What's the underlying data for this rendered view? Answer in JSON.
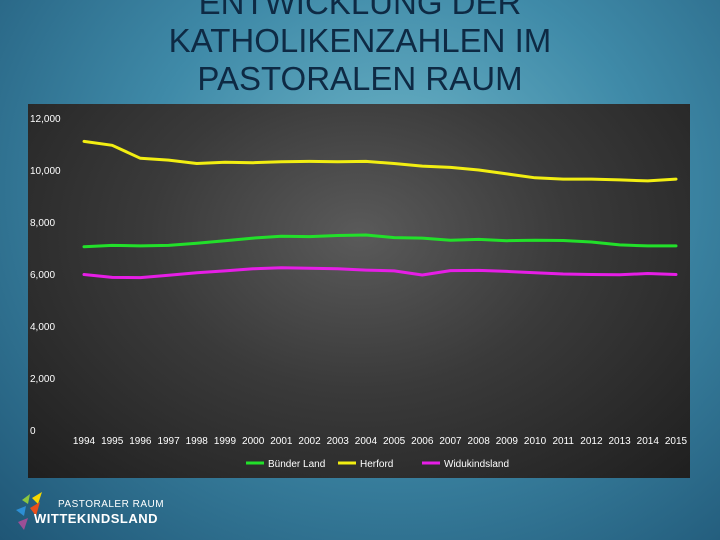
{
  "slide": {
    "title": "ENTWICKLUNG DER KATHOLIKENZAHLEN IM PASTORALEN RAUM WITTEKINDSLAND"
  },
  "logo": {
    "line1": "PASTORALER RAUM",
    "line2": "WITTEKINDSLAND"
  },
  "colors": {
    "background": "#3f8aa8",
    "title": "#0e2a44",
    "panel": "#3a3a3a",
    "text": "#ffffff"
  },
  "chart_data": {
    "type": "line",
    "title": "",
    "xlabel": "",
    "ylabel": "",
    "ylim": [
      0,
      12000
    ],
    "yticks": [
      0,
      2000,
      4000,
      6000,
      8000,
      10000,
      12000
    ],
    "ytick_labels": [
      "0",
      "2,000",
      "4,000",
      "6,000",
      "8,000",
      "10,000",
      "12,000"
    ],
    "grid": false,
    "legend_position": "bottom",
    "categories": [
      "1994",
      "1995",
      "1996",
      "1997",
      "1998",
      "1999",
      "2000",
      "2001",
      "2002",
      "2003",
      "2004",
      "2005",
      "2006",
      "2007",
      "2008",
      "2009",
      "2010",
      "2011",
      "2012",
      "2013",
      "2014",
      "2015"
    ],
    "series": [
      {
        "name": "Bünder Land",
        "color": "#22e02a",
        "values": [
          7050,
          7100,
          7080,
          7100,
          7180,
          7280,
          7380,
          7450,
          7440,
          7480,
          7500,
          7400,
          7380,
          7300,
          7330,
          7280,
          7300,
          7290,
          7230,
          7120,
          7080,
          7080
        ]
      },
      {
        "name": "Herford",
        "color": "#f2ee12",
        "values": [
          11100,
          10950,
          10450,
          10380,
          10250,
          10300,
          10280,
          10320,
          10330,
          10320,
          10330,
          10250,
          10150,
          10100,
          10000,
          9850,
          9700,
          9650,
          9650,
          9620,
          9580,
          9650
        ]
      },
      {
        "name": "Widukindsland",
        "color": "#e61ee6",
        "values": [
          5980,
          5870,
          5860,
          5950,
          6050,
          6120,
          6200,
          6240,
          6220,
          6200,
          6150,
          6120,
          5960,
          6130,
          6140,
          6100,
          6050,
          6000,
          5980,
          5970,
          6020,
          5980
        ]
      }
    ]
  }
}
